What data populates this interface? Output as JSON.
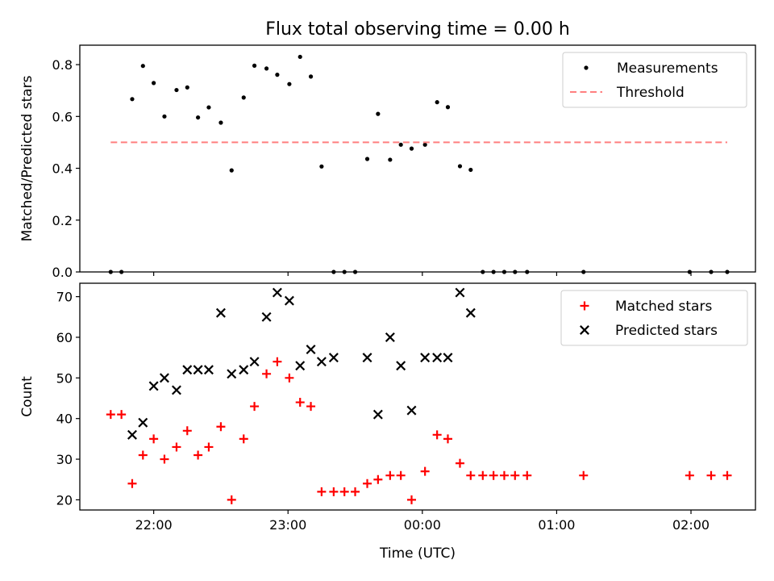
{
  "chart_data": {
    "title": "Flux total observing time = 0.00 h",
    "xlabel": "Time (UTC)",
    "x_unit": "hours after 00:00 UTC (negative = previous evening)",
    "xlim": [
      -2.55,
      2.48
    ],
    "x_ticks": [
      {
        "value": -2.0,
        "label": "22:00"
      },
      {
        "value": -1.0,
        "label": "23:00"
      },
      {
        "value": 0.0,
        "label": "00:00"
      },
      {
        "value": 1.0,
        "label": "01:00"
      },
      {
        "value": 2.0,
        "label": "02:00"
      }
    ],
    "x": [
      -2.32,
      -2.24,
      -2.16,
      -2.08,
      -2.0,
      -1.92,
      -1.83,
      -1.75,
      -1.67,
      -1.59,
      -1.5,
      -1.42,
      -1.33,
      -1.25,
      -1.16,
      -1.08,
      -0.99,
      -0.91,
      -0.83,
      -0.75,
      -0.66,
      -0.58,
      -0.5,
      -0.41,
      -0.33,
      -0.24,
      -0.16,
      -0.08,
      0.02,
      0.11,
      0.19,
      0.28,
      0.36,
      0.45,
      0.53,
      0.61,
      0.69,
      0.78,
      1.2,
      1.99,
      2.15,
      2.27
    ],
    "panels": [
      {
        "type": "scatter",
        "ylabel": "Matched/Predicted stars",
        "ylim": [
          0,
          0.875
        ],
        "yticks": [
          0.0,
          0.2,
          0.4,
          0.6,
          0.8
        ],
        "ytick_labels": [
          "0.0",
          "0.2",
          "0.4",
          "0.6",
          "0.8"
        ],
        "legend_position": "upper right",
        "series": [
          {
            "name": "Measurements",
            "marker": "dot",
            "color": "#000000",
            "y": [
              0.0,
              0.0,
              0.667,
              0.795,
              0.729,
              0.6,
              0.702,
              0.712,
              0.596,
              0.635,
              0.576,
              0.392,
              0.673,
              0.796,
              0.785,
              0.761,
              0.725,
              0.83,
              0.754,
              0.407,
              0.0,
              0.0,
              0.0,
              0.436,
              0.61,
              0.433,
              0.491,
              0.476,
              0.491,
              0.655,
              0.636,
              0.408,
              0.394,
              0.0,
              0.0,
              0.0,
              0.0,
              0.0,
              0.0,
              0.0,
              0.0,
              0.0
            ]
          },
          {
            "name": "Threshold",
            "style": "dashed line",
            "color": "#ff7f7f",
            "x_range": [
              -2.32,
              2.27
            ],
            "value": 0.5
          }
        ]
      },
      {
        "type": "scatter",
        "ylabel": "Count",
        "ylim": [
          17.5,
          73.3
        ],
        "yticks": [
          20,
          30,
          40,
          50,
          60,
          70
        ],
        "ytick_labels": [
          "20",
          "30",
          "40",
          "50",
          "60",
          "70"
        ],
        "legend_position": "upper right",
        "series": [
          {
            "name": "Matched stars",
            "marker": "plus",
            "color": "#ff0000",
            "y": [
              41,
              41,
              24,
              31,
              35,
              30,
              33,
              37,
              31,
              33,
              38,
              20,
              35,
              43,
              51,
              54,
              50,
              44,
              43,
              22,
              22,
              22,
              22,
              24,
              25,
              26,
              26,
              20,
              27,
              36,
              35,
              29,
              26,
              26,
              26,
              26,
              26,
              26,
              26,
              26,
              26,
              26
            ]
          },
          {
            "name": "Predicted stars",
            "marker": "x",
            "color": "#000000",
            "x": [
              -2.16,
              -2.08,
              -2.0,
              -1.92,
              -1.83,
              -1.75,
              -1.67,
              -1.59,
              -1.5,
              -1.42,
              -1.33,
              -1.25,
              -1.16,
              -1.08,
              -0.99,
              -0.91,
              -0.83,
              -0.75,
              -0.66,
              -0.41,
              -0.33,
              -0.24,
              -0.16,
              -0.08,
              0.02,
              0.11,
              0.19,
              0.28,
              0.36
            ],
            "y": [
              36,
              39,
              48,
              50,
              47,
              52,
              52,
              52,
              66,
              51,
              52,
              54,
              65,
              71,
              69,
              53,
              57,
              54,
              55,
              55,
              41,
              60,
              53,
              42,
              55,
              55,
              55,
              71,
              66
            ]
          }
        ]
      }
    ]
  }
}
